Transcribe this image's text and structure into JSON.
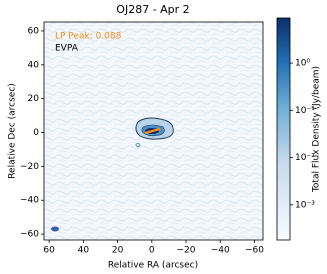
{
  "chart_data": {
    "type": "image",
    "title": "OJ287 - Apr 2",
    "xlabel": "Relative RA (arcsec)",
    "ylabel": "Relative Dec (arcsec)",
    "xlim": [
      63,
      -65
    ],
    "xticks": [
      60,
      40,
      20,
      0,
      {
        "value": -20,
        "label": "−20"
      },
      {
        "value": -40,
        "label": "−40"
      },
      {
        "value": -60,
        "label": "−60"
      }
    ],
    "ylim": [
      -63.5,
      65.3
    ],
    "yticks": [
      {
        "value": -60,
        "label": "−60"
      },
      {
        "value": -40,
        "label": "−40"
      },
      {
        "value": -20,
        "label": "−20"
      },
      0,
      20,
      40,
      60
    ],
    "colorbar": {
      "label": "Total Flux Density (Jy/beam)",
      "scale": "log",
      "lim": [
        0.00018,
        9
      ],
      "ticks": [
        {
          "value": 0.001,
          "label": "10⁻³"
        },
        {
          "value": 0.01,
          "label": "10⁻²"
        },
        {
          "value": 0.1,
          "label": "10⁻¹"
        },
        {
          "value": 1,
          "label": "10⁰"
        }
      ]
    },
    "annotations": [
      {
        "text": "LP Peak: 0.088",
        "color": "#f28c1a"
      },
      {
        "text": "EVPA",
        "color": "#000000"
      }
    ]
  }
}
